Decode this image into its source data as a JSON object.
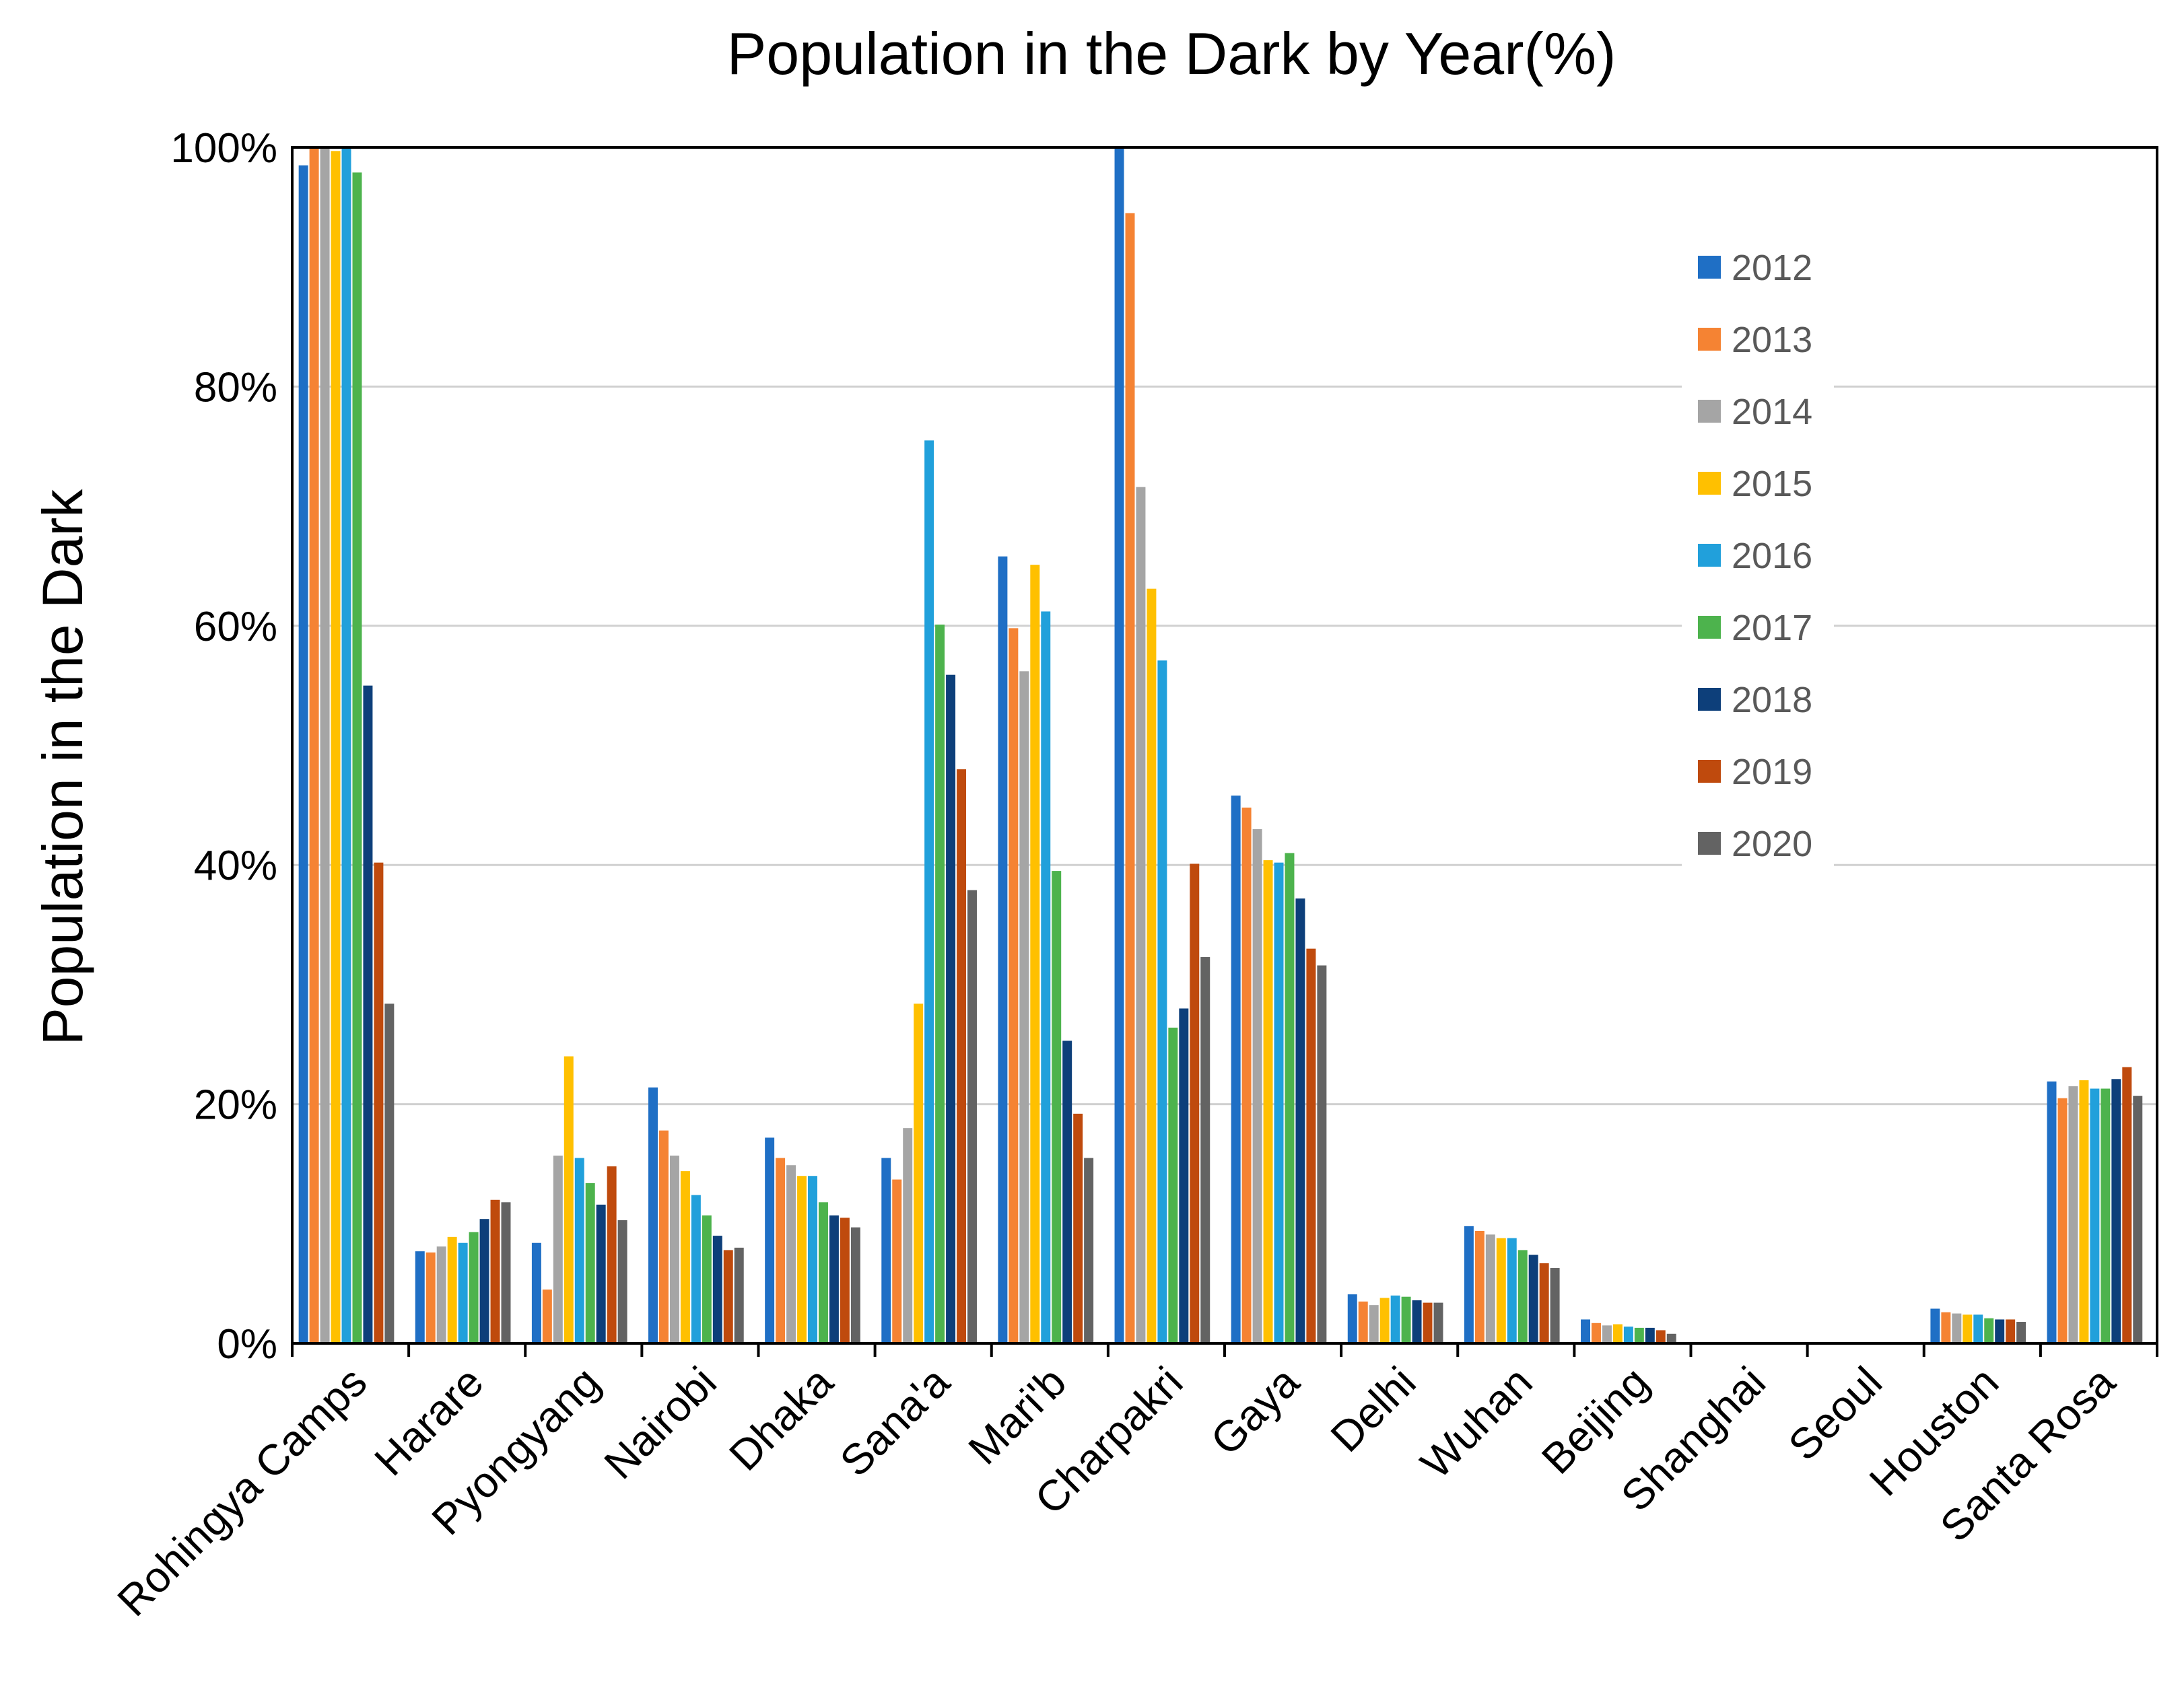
{
  "chart_data": {
    "type": "bar",
    "title": "Population in the Dark by Year(%)",
    "xlabel": "",
    "ylabel": "Population in the Dark",
    "ylim": [
      0,
      100
    ],
    "yticks": [
      "0%",
      "20%",
      "40%",
      "60%",
      "80%",
      "100%"
    ],
    "grid": true,
    "legend_position": "top-right",
    "categories": [
      "Rohingya Camps",
      "Harare",
      "Pyongyang",
      "Nairobi",
      "Dhaka",
      "Sana'a",
      "Mari'b",
      "Charpakri",
      "Gaya",
      "Delhi",
      "Wuhan",
      "Beijing",
      "Shanghai",
      "Seoul",
      "Houston",
      "Santa Rosa"
    ],
    "series": [
      {
        "name": "2012",
        "color": "#1F6FC5",
        "values": [
          98.5,
          7.7,
          8.4,
          21.4,
          17.2,
          15.5,
          65.8,
          100,
          45.8,
          4.1,
          9.8,
          2.0,
          0,
          0,
          2.9,
          21.9
        ]
      },
      {
        "name": "2013",
        "color": "#F58333",
        "values": [
          100,
          7.6,
          4.5,
          17.8,
          15.5,
          13.7,
          59.8,
          94.5,
          44.8,
          3.5,
          9.4,
          1.7,
          0,
          0,
          2.6,
          20.5
        ]
      },
      {
        "name": "2014",
        "color": "#A5A5A5",
        "values": [
          100,
          8.1,
          15.7,
          15.7,
          14.9,
          18.0,
          56.2,
          71.6,
          43.0,
          3.2,
          9.1,
          1.5,
          0,
          0,
          2.5,
          21.5
        ]
      },
      {
        "name": "2015",
        "color": "#FFC000",
        "values": [
          99.7,
          8.9,
          24.0,
          14.4,
          14.0,
          28.4,
          65.1,
          63.1,
          40.4,
          3.8,
          8.8,
          1.6,
          0,
          0,
          2.4,
          22.0
        ]
      },
      {
        "name": "2016",
        "color": "#21A0DB",
        "values": [
          100,
          8.4,
          15.5,
          12.4,
          14.0,
          75.5,
          61.2,
          57.1,
          40.2,
          4.0,
          8.8,
          1.4,
          0,
          0,
          2.4,
          21.3
        ]
      },
      {
        "name": "2017",
        "color": "#4DB34D",
        "values": [
          97.9,
          9.3,
          13.4,
          10.7,
          11.8,
          60.1,
          39.5,
          26.4,
          41.0,
          3.9,
          7.8,
          1.3,
          0,
          0,
          2.1,
          21.3
        ]
      },
      {
        "name": "2018",
        "color": "#0D3F7A",
        "values": [
          55.0,
          10.4,
          11.6,
          9.0,
          10.7,
          55.9,
          25.3,
          28.0,
          37.2,
          3.6,
          7.4,
          1.3,
          0,
          0,
          2.0,
          22.1
        ]
      },
      {
        "name": "2019",
        "color": "#BF4A0D",
        "values": [
          40.2,
          12.0,
          14.8,
          7.8,
          10.5,
          48.0,
          19.2,
          40.1,
          33.0,
          3.4,
          6.7,
          1.1,
          0,
          0,
          2.0,
          23.1
        ]
      },
      {
        "name": "2020",
        "color": "#636363",
        "values": [
          28.4,
          11.8,
          10.3,
          8.0,
          9.7,
          37.9,
          15.5,
          32.3,
          31.6,
          3.4,
          6.3,
          0.8,
          0,
          0,
          1.8,
          20.7
        ]
      }
    ]
  }
}
